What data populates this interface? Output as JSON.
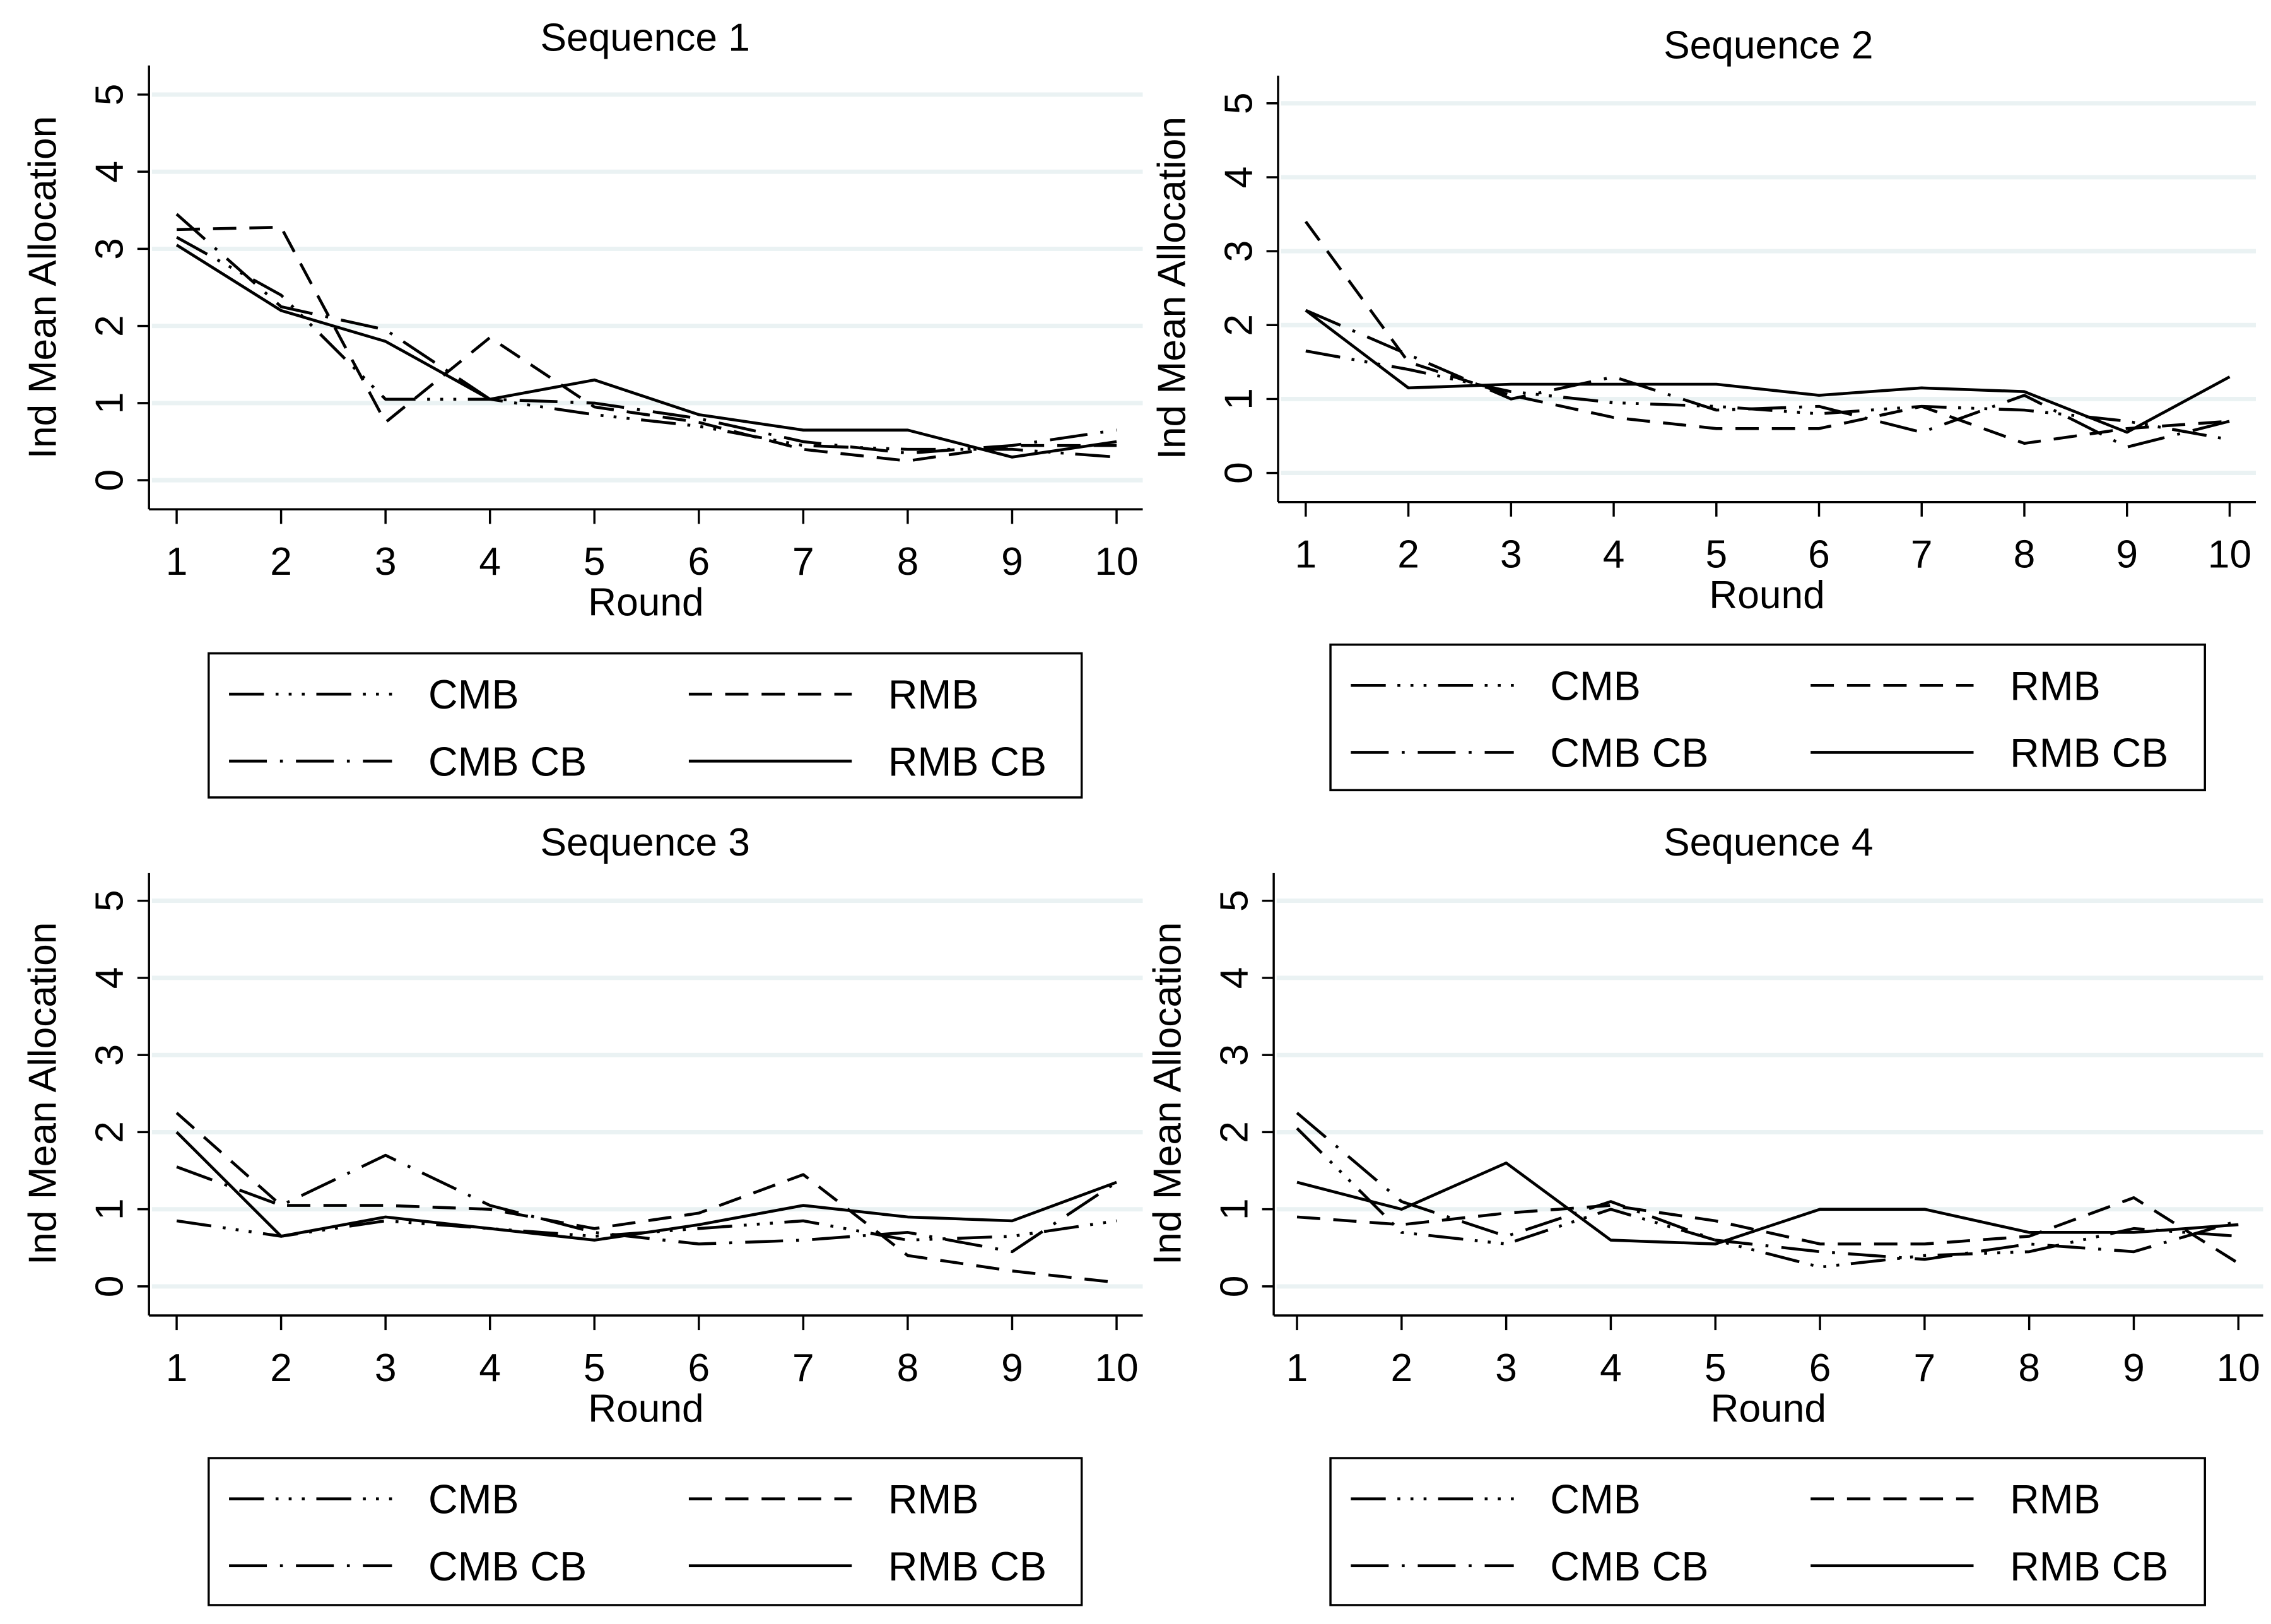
{
  "chart_data": [
    {
      "type": "line",
      "title": "Sequence 1",
      "xlabel": "Round",
      "ylabel": "Ind Mean Allocation",
      "x": [
        1,
        2,
        3,
        4,
        5,
        6,
        7,
        8,
        9,
        10
      ],
      "xlim": [
        1,
        10
      ],
      "ylim": [
        0,
        5
      ],
      "yticks": [
        0,
        1,
        2,
        3,
        4,
        5
      ],
      "grid": true,
      "legend_position": "bottom",
      "series": [
        {
          "name": "CMB",
          "style": "dash-dot-dot",
          "values": [
            3.15,
            2.4,
            1.05,
            1.05,
            0.85,
            0.7,
            0.45,
            0.4,
            0.4,
            0.3
          ]
        },
        {
          "name": "RMB",
          "style": "dashed",
          "values": [
            3.25,
            3.28,
            0.75,
            1.85,
            0.95,
            0.75,
            0.4,
            0.25,
            0.45,
            0.45
          ]
        },
        {
          "name": "CMB CB",
          "style": "dash-dot",
          "values": [
            3.45,
            2.25,
            1.95,
            1.05,
            1.0,
            0.8,
            0.5,
            0.35,
            0.45,
            0.65
          ]
        },
        {
          "name": "RMB CB",
          "style": "solid",
          "values": [
            3.05,
            2.2,
            1.8,
            1.05,
            1.3,
            0.85,
            0.65,
            0.65,
            0.3,
            0.5
          ]
        }
      ]
    },
    {
      "type": "line",
      "title": "Sequence 2",
      "xlabel": "Round",
      "ylabel": "Ind Mean Allocation",
      "x": [
        1,
        2,
        3,
        4,
        5,
        6,
        7,
        8,
        9,
        10
      ],
      "xlim": [
        1,
        10
      ],
      "ylim": [
        0,
        5
      ],
      "yticks": [
        0,
        1,
        2,
        3,
        4,
        5
      ],
      "grid": true,
      "legend_position": "bottom",
      "series": [
        {
          "name": "CMB",
          "style": "dash-dot-dot",
          "values": [
            1.65,
            1.4,
            1.1,
            0.95,
            0.9,
            0.8,
            0.9,
            0.85,
            0.7,
            0.45
          ]
        },
        {
          "name": "RMB",
          "style": "dashed",
          "values": [
            3.4,
            1.5,
            1.05,
            0.75,
            0.6,
            0.6,
            0.9,
            0.4,
            0.6,
            0.7
          ]
        },
        {
          "name": "CMB CB",
          "style": "dash-dot",
          "values": [
            2.2,
            1.6,
            1.0,
            1.3,
            0.85,
            0.9,
            0.55,
            1.05,
            0.35,
            0.7
          ]
        },
        {
          "name": "RMB CB",
          "style": "solid",
          "values": [
            2.2,
            1.15,
            1.2,
            1.2,
            1.2,
            1.05,
            1.15,
            1.1,
            0.55,
            1.3
          ]
        }
      ]
    },
    {
      "type": "line",
      "title": "Sequence 3",
      "xlabel": "Round",
      "ylabel": "Ind Mean Allocation",
      "x": [
        1,
        2,
        3,
        4,
        5,
        6,
        7,
        8,
        9,
        10
      ],
      "xlim": [
        1,
        10
      ],
      "ylim": [
        0,
        5
      ],
      "yticks": [
        0,
        1,
        2,
        3,
        4,
        5
      ],
      "grid": true,
      "legend_position": "bottom",
      "series": [
        {
          "name": "CMB",
          "style": "dash-dot-dot",
          "values": [
            0.85,
            0.65,
            0.85,
            0.75,
            0.65,
            0.75,
            0.85,
            0.6,
            0.65,
            0.85
          ]
        },
        {
          "name": "RMB",
          "style": "dashed",
          "values": [
            2.25,
            1.05,
            1.05,
            1.0,
            0.75,
            0.95,
            1.45,
            0.4,
            0.2,
            0.05
          ]
        },
        {
          "name": "CMB CB",
          "style": "dash-dot",
          "values": [
            1.55,
            1.05,
            1.7,
            1.05,
            0.7,
            0.55,
            0.6,
            0.7,
            0.45,
            1.35
          ]
        },
        {
          "name": "RMB CB",
          "style": "solid",
          "values": [
            2.0,
            0.65,
            0.9,
            0.75,
            0.6,
            0.8,
            1.05,
            0.9,
            0.85,
            1.35
          ]
        }
      ]
    },
    {
      "type": "line",
      "title": "Sequence 4",
      "xlabel": "Round",
      "ylabel": "Ind Mean Allocation",
      "x": [
        1,
        2,
        3,
        4,
        5,
        6,
        7,
        8,
        9,
        10
      ],
      "xlim": [
        1,
        10
      ],
      "ylim": [
        0,
        5
      ],
      "yticks": [
        0,
        1,
        2,
        3,
        4,
        5
      ],
      "grid": true,
      "legend_position": "bottom",
      "series": [
        {
          "name": "CMB",
          "style": "dash-dot-dot",
          "values": [
            2.05,
            0.7,
            0.55,
            1.0,
            0.6,
            0.25,
            0.4,
            0.45,
            0.75,
            0.65
          ]
        },
        {
          "name": "RMB",
          "style": "dashed",
          "values": [
            0.9,
            0.8,
            0.95,
            1.05,
            0.85,
            0.55,
            0.55,
            0.65,
            1.15,
            0.3
          ]
        },
        {
          "name": "CMB CB",
          "style": "dash-dot",
          "values": [
            2.25,
            1.1,
            0.65,
            1.1,
            0.6,
            0.45,
            0.35,
            0.55,
            0.45,
            0.85
          ]
        },
        {
          "name": "RMB CB",
          "style": "solid",
          "values": [
            1.35,
            1.0,
            1.6,
            0.6,
            0.55,
            1.0,
            1.0,
            0.7,
            0.7,
            0.8
          ]
        }
      ]
    }
  ],
  "colors": {
    "line": "#000000",
    "grid": "#eaf2f3",
    "background": "#ffffff"
  }
}
